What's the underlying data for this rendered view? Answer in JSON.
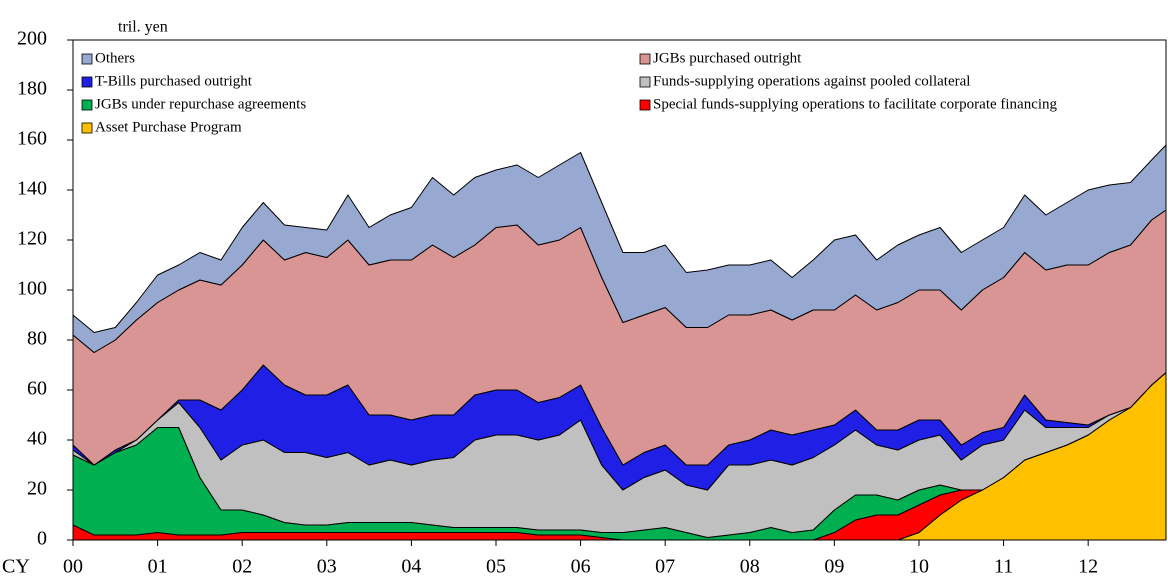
{
  "chart_data": {
    "type": "stacked_area",
    "y_label": "tril. yen",
    "x_label": "CY",
    "xlim": [
      2000,
      2012.92
    ],
    "xticks": [
      {
        "value": 2000,
        "label": "00"
      },
      {
        "value": 2001,
        "label": "01"
      },
      {
        "value": 2002,
        "label": "02"
      },
      {
        "value": 2003,
        "label": "03"
      },
      {
        "value": 2004,
        "label": "04"
      },
      {
        "value": 2005,
        "label": "05"
      },
      {
        "value": 2006,
        "label": "06"
      },
      {
        "value": 2007,
        "label": "07"
      },
      {
        "value": 2008,
        "label": "08"
      },
      {
        "value": 2009,
        "label": "09"
      },
      {
        "value": 2010,
        "label": "10"
      },
      {
        "value": 2011,
        "label": "11"
      },
      {
        "value": 2012,
        "label": "12"
      }
    ],
    "ylim": [
      0,
      200
    ],
    "yticks": [
      0,
      20,
      40,
      60,
      80,
      100,
      120,
      140,
      160,
      180,
      200
    ],
    "x": [
      2000,
      2000.25,
      2000.5,
      2000.75,
      2001,
      2001.25,
      2001.5,
      2001.75,
      2002,
      2002.25,
      2002.5,
      2002.75,
      2003,
      2003.25,
      2003.5,
      2003.75,
      2004,
      2004.25,
      2004.5,
      2004.75,
      2005,
      2005.25,
      2005.5,
      2005.75,
      2006,
      2006.25,
      2006.5,
      2006.75,
      2007,
      2007.25,
      2007.5,
      2007.75,
      2008,
      2008.25,
      2008.5,
      2008.75,
      2009,
      2009.25,
      2009.5,
      2009.75,
      2010,
      2010.25,
      2010.5,
      2010.75,
      2011,
      2011.25,
      2011.5,
      2011.75,
      2012,
      2012.25,
      2012.5,
      2012.75,
      2012.92
    ],
    "series": [
      {
        "name": "Others",
        "color": "#97a9d1",
        "values": [
          8,
          8,
          5,
          7,
          11,
          10,
          11,
          10,
          15,
          15,
          14,
          10,
          11,
          18,
          15,
          18,
          21,
          27,
          25,
          27,
          23,
          24,
          27,
          30,
          30,
          30,
          28,
          25,
          25,
          22,
          23,
          20,
          20,
          20,
          17,
          20,
          28,
          24,
          20,
          23,
          22,
          25,
          23,
          20,
          20,
          23,
          22,
          25,
          30,
          27,
          25,
          24,
          26
        ]
      },
      {
        "name": "JGBs purchased outright",
        "color": "#d99594",
        "values": [
          44,
          45,
          44,
          48,
          47,
          44,
          48,
          50,
          50,
          50,
          50,
          57,
          55,
          58,
          60,
          62,
          64,
          68,
          63,
          60,
          65,
          66,
          63,
          63,
          63,
          60,
          57,
          55,
          55,
          55,
          55,
          52,
          50,
          48,
          46,
          48,
          46,
          46,
          48,
          51,
          52,
          52,
          54,
          57,
          60,
          57,
          60,
          63,
          64,
          65,
          65,
          66,
          65
        ]
      },
      {
        "name": "T-Bills purchased outright",
        "color": "#1f1fe6",
        "values": [
          2,
          0,
          1,
          0,
          0,
          1,
          11,
          20,
          22,
          30,
          27,
          23,
          25,
          27,
          20,
          18,
          18,
          18,
          17,
          18,
          18,
          18,
          15,
          15,
          14,
          15,
          10,
          10,
          10,
          8,
          10,
          8,
          10,
          12,
          12,
          11,
          8,
          8,
          6,
          8,
          8,
          6,
          6,
          5,
          5,
          6,
          3,
          2,
          1,
          0,
          0,
          0,
          0
        ]
      },
      {
        "name": "Funds-supplying operations against pooled collateral",
        "color": "#c0c0c0",
        "values": [
          2,
          0,
          0,
          2,
          3,
          10,
          20,
          20,
          26,
          30,
          28,
          29,
          27,
          28,
          23,
          25,
          23,
          26,
          28,
          35,
          37,
          37,
          36,
          38,
          44,
          27,
          17,
          21,
          23,
          19,
          19,
          28,
          27,
          27,
          27,
          29,
          26,
          26,
          20,
          20,
          20,
          20,
          12,
          18,
          15,
          20,
          10,
          7,
          3,
          2,
          0,
          0,
          0
        ]
      },
      {
        "name": "JGBs under repurchase agreements",
        "color": "#00b050",
        "values": [
          28,
          28,
          33,
          36,
          42,
          43,
          23,
          10,
          9,
          7,
          4,
          3,
          3,
          4,
          4,
          4,
          4,
          3,
          2,
          2,
          2,
          2,
          2,
          2,
          2,
          2,
          3,
          4,
          5,
          3,
          1,
          2,
          3,
          5,
          3,
          4,
          9,
          10,
          8,
          6,
          6,
          4,
          0,
          0,
          0,
          0,
          0,
          0,
          0,
          0,
          0,
          0,
          0
        ]
      },
      {
        "name": "Special funds-supplying operations to facilitate corporate financing",
        "color": "#ff0000",
        "values": [
          6,
          2,
          2,
          2,
          3,
          2,
          2,
          2,
          3,
          3,
          3,
          3,
          3,
          3,
          3,
          3,
          3,
          3,
          3,
          3,
          3,
          3,
          2,
          2,
          2,
          1,
          0,
          0,
          0,
          0,
          0,
          0,
          0,
          0,
          0,
          0,
          3,
          8,
          10,
          10,
          11,
          8,
          4,
          0,
          0,
          0,
          0,
          0,
          0,
          0,
          0,
          0,
          0
        ]
      },
      {
        "name": "Asset Purchase Program",
        "color": "#ffc000",
        "values": [
          0,
          0,
          0,
          0,
          0,
          0,
          0,
          0,
          0,
          0,
          0,
          0,
          0,
          0,
          0,
          0,
          0,
          0,
          0,
          0,
          0,
          0,
          0,
          0,
          0,
          0,
          0,
          0,
          0,
          0,
          0,
          0,
          0,
          0,
          0,
          0,
          0,
          0,
          0,
          0,
          3,
          10,
          16,
          20,
          25,
          32,
          35,
          38,
          42,
          48,
          53,
          62,
          67
        ]
      }
    ]
  }
}
